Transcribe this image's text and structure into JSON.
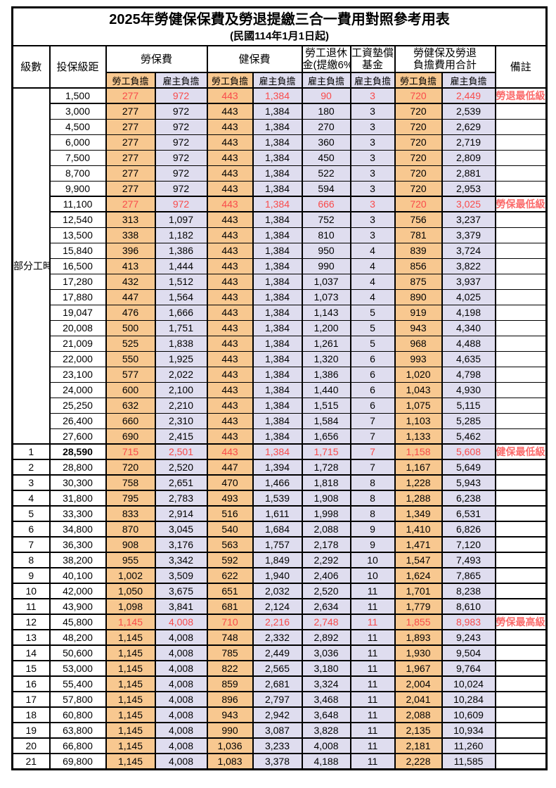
{
  "title": "2025年勞健保保費及勞退提繳三合一費用對照參考用表",
  "subtitle": "(民國114年1月1日起)",
  "colors": {
    "employee_bg": "#f8c890",
    "employer_bg": "#dfddef",
    "highlight_text": "#f94b4b",
    "border": "#000000"
  },
  "header": {
    "level": "級數",
    "bracket": "投保級距",
    "labor_fee": "勞保費",
    "health_fee": "健保費",
    "pension_line1": "勞工退休",
    "pension_line2": "金(提繳6%)",
    "wage_fund_line1": "工資墊償",
    "wage_fund_line2": "基金",
    "total_line1": "勞健保及勞退",
    "total_line2": "負擔費用合計",
    "remark": "備註",
    "employee": "勞工負擔",
    "employer": "雇主負擔"
  },
  "part_time_label": "部分工時",
  "rows": [
    {
      "level": "",
      "bracket": "1,500",
      "labor_emp": "277",
      "labor_er": "972",
      "health_emp": "443",
      "health_er": "1,384",
      "pension_er": "90",
      "wage_er": "3",
      "total_emp": "720",
      "total_er": "2,449",
      "remark": "勞退最低級距",
      "red": true
    },
    {
      "level": "",
      "bracket": "3,000",
      "labor_emp": "277",
      "labor_er": "972",
      "health_emp": "443",
      "health_er": "1,384",
      "pension_er": "180",
      "wage_er": "3",
      "total_emp": "720",
      "total_er": "2,539",
      "remark": ""
    },
    {
      "level": "",
      "bracket": "4,500",
      "labor_emp": "277",
      "labor_er": "972",
      "health_emp": "443",
      "health_er": "1,384",
      "pension_er": "270",
      "wage_er": "3",
      "total_emp": "720",
      "total_er": "2,629",
      "remark": ""
    },
    {
      "level": "",
      "bracket": "6,000",
      "labor_emp": "277",
      "labor_er": "972",
      "health_emp": "443",
      "health_er": "1,384",
      "pension_er": "360",
      "wage_er": "3",
      "total_emp": "720",
      "total_er": "2,719",
      "remark": ""
    },
    {
      "level": "",
      "bracket": "7,500",
      "labor_emp": "277",
      "labor_er": "972",
      "health_emp": "443",
      "health_er": "1,384",
      "pension_er": "450",
      "wage_er": "3",
      "total_emp": "720",
      "total_er": "2,809",
      "remark": ""
    },
    {
      "level": "",
      "bracket": "8,700",
      "labor_emp": "277",
      "labor_er": "972",
      "health_emp": "443",
      "health_er": "1,384",
      "pension_er": "522",
      "wage_er": "3",
      "total_emp": "720",
      "total_er": "2,881",
      "remark": ""
    },
    {
      "level": "",
      "bracket": "9,900",
      "labor_emp": "277",
      "labor_er": "972",
      "health_emp": "443",
      "health_er": "1,384",
      "pension_er": "594",
      "wage_er": "3",
      "total_emp": "720",
      "total_er": "2,953",
      "remark": ""
    },
    {
      "level": "",
      "bracket": "11,100",
      "labor_emp": "277",
      "labor_er": "972",
      "health_emp": "443",
      "health_er": "1,384",
      "pension_er": "666",
      "wage_er": "3",
      "total_emp": "720",
      "total_er": "3,025",
      "remark": "勞保最低級距",
      "red": true
    },
    {
      "level": "",
      "bracket": "12,540",
      "labor_emp": "313",
      "labor_er": "1,097",
      "health_emp": "443",
      "health_er": "1,384",
      "pension_er": "752",
      "wage_er": "3",
      "total_emp": "756",
      "total_er": "3,237",
      "remark": ""
    },
    {
      "level": "",
      "bracket": "13,500",
      "labor_emp": "338",
      "labor_er": "1,182",
      "health_emp": "443",
      "health_er": "1,384",
      "pension_er": "810",
      "wage_er": "3",
      "total_emp": "781",
      "total_er": "3,379",
      "remark": ""
    },
    {
      "level": "",
      "bracket": "15,840",
      "labor_emp": "396",
      "labor_er": "1,386",
      "health_emp": "443",
      "health_er": "1,384",
      "pension_er": "950",
      "wage_er": "4",
      "total_emp": "839",
      "total_er": "3,724",
      "remark": ""
    },
    {
      "level": "",
      "bracket": "16,500",
      "labor_emp": "413",
      "labor_er": "1,444",
      "health_emp": "443",
      "health_er": "1,384",
      "pension_er": "990",
      "wage_er": "4",
      "total_emp": "856",
      "total_er": "3,822",
      "remark": ""
    },
    {
      "level": "",
      "bracket": "17,280",
      "labor_emp": "432",
      "labor_er": "1,512",
      "health_emp": "443",
      "health_er": "1,384",
      "pension_er": "1,037",
      "wage_er": "4",
      "total_emp": "875",
      "total_er": "3,937",
      "remark": ""
    },
    {
      "level": "",
      "bracket": "17,880",
      "labor_emp": "447",
      "labor_er": "1,564",
      "health_emp": "443",
      "health_er": "1,384",
      "pension_er": "1,073",
      "wage_er": "4",
      "total_emp": "890",
      "total_er": "4,025",
      "remark": ""
    },
    {
      "level": "",
      "bracket": "19,047",
      "labor_emp": "476",
      "labor_er": "1,666",
      "health_emp": "443",
      "health_er": "1,384",
      "pension_er": "1,143",
      "wage_er": "5",
      "total_emp": "919",
      "total_er": "4,198",
      "remark": ""
    },
    {
      "level": "",
      "bracket": "20,008",
      "labor_emp": "500",
      "labor_er": "1,751",
      "health_emp": "443",
      "health_er": "1,384",
      "pension_er": "1,200",
      "wage_er": "5",
      "total_emp": "943",
      "total_er": "4,340",
      "remark": ""
    },
    {
      "level": "",
      "bracket": "21,009",
      "labor_emp": "525",
      "labor_er": "1,838",
      "health_emp": "443",
      "health_er": "1,384",
      "pension_er": "1,261",
      "wage_er": "5",
      "total_emp": "968",
      "total_er": "4,488",
      "remark": ""
    },
    {
      "level": "",
      "bracket": "22,000",
      "labor_emp": "550",
      "labor_er": "1,925",
      "health_emp": "443",
      "health_er": "1,384",
      "pension_er": "1,320",
      "wage_er": "6",
      "total_emp": "993",
      "total_er": "4,635",
      "remark": ""
    },
    {
      "level": "",
      "bracket": "23,100",
      "labor_emp": "577",
      "labor_er": "2,022",
      "health_emp": "443",
      "health_er": "1,384",
      "pension_er": "1,386",
      "wage_er": "6",
      "total_emp": "1,020",
      "total_er": "4,798",
      "remark": ""
    },
    {
      "level": "",
      "bracket": "24,000",
      "labor_emp": "600",
      "labor_er": "2,100",
      "health_emp": "443",
      "health_er": "1,384",
      "pension_er": "1,440",
      "wage_er": "6",
      "total_emp": "1,043",
      "total_er": "4,930",
      "remark": ""
    },
    {
      "level": "",
      "bracket": "25,250",
      "labor_emp": "632",
      "labor_er": "2,210",
      "health_emp": "443",
      "health_er": "1,384",
      "pension_er": "1,515",
      "wage_er": "6",
      "total_emp": "1,075",
      "total_er": "5,115",
      "remark": ""
    },
    {
      "level": "",
      "bracket": "26,400",
      "labor_emp": "660",
      "labor_er": "2,310",
      "health_emp": "443",
      "health_er": "1,384",
      "pension_er": "1,584",
      "wage_er": "7",
      "total_emp": "1,103",
      "total_er": "5,285",
      "remark": ""
    },
    {
      "level": "",
      "bracket": "27,600",
      "labor_emp": "690",
      "labor_er": "2,415",
      "health_emp": "443",
      "health_er": "1,384",
      "pension_er": "1,656",
      "wage_er": "7",
      "total_emp": "1,133",
      "total_er": "5,462",
      "remark": ""
    },
    {
      "level": "1",
      "bracket": "28,590",
      "labor_emp": "715",
      "labor_er": "2,501",
      "health_emp": "443",
      "health_er": "1,384",
      "pension_er": "1,715",
      "wage_er": "7",
      "total_emp": "1,158",
      "total_er": "5,608",
      "remark": "健保最低級距",
      "red": true,
      "emph": true
    },
    {
      "level": "2",
      "bracket": "28,800",
      "labor_emp": "720",
      "labor_er": "2,520",
      "health_emp": "447",
      "health_er": "1,394",
      "pension_er": "1,728",
      "wage_er": "7",
      "total_emp": "1,167",
      "total_er": "5,649",
      "remark": ""
    },
    {
      "level": "3",
      "bracket": "30,300",
      "labor_emp": "758",
      "labor_er": "2,651",
      "health_emp": "470",
      "health_er": "1,466",
      "pension_er": "1,818",
      "wage_er": "8",
      "total_emp": "1,228",
      "total_er": "5,943",
      "remark": ""
    },
    {
      "level": "4",
      "bracket": "31,800",
      "labor_emp": "795",
      "labor_er": "2,783",
      "health_emp": "493",
      "health_er": "1,539",
      "pension_er": "1,908",
      "wage_er": "8",
      "total_emp": "1,288",
      "total_er": "6,238",
      "remark": ""
    },
    {
      "level": "5",
      "bracket": "33,300",
      "labor_emp": "833",
      "labor_er": "2,914",
      "health_emp": "516",
      "health_er": "1,611",
      "pension_er": "1,998",
      "wage_er": "8",
      "total_emp": "1,349",
      "total_er": "6,531",
      "remark": ""
    },
    {
      "level": "6",
      "bracket": "34,800",
      "labor_emp": "870",
      "labor_er": "3,045",
      "health_emp": "540",
      "health_er": "1,684",
      "pension_er": "2,088",
      "wage_er": "9",
      "total_emp": "1,410",
      "total_er": "6,826",
      "remark": ""
    },
    {
      "level": "7",
      "bracket": "36,300",
      "labor_emp": "908",
      "labor_er": "3,176",
      "health_emp": "563",
      "health_er": "1,757",
      "pension_er": "2,178",
      "wage_er": "9",
      "total_emp": "1,471",
      "total_er": "7,120",
      "remark": ""
    },
    {
      "level": "8",
      "bracket": "38,200",
      "labor_emp": "955",
      "labor_er": "3,342",
      "health_emp": "592",
      "health_er": "1,849",
      "pension_er": "2,292",
      "wage_er": "10",
      "total_emp": "1,547",
      "total_er": "7,493",
      "remark": ""
    },
    {
      "level": "9",
      "bracket": "40,100",
      "labor_emp": "1,002",
      "labor_er": "3,509",
      "health_emp": "622",
      "health_er": "1,940",
      "pension_er": "2,406",
      "wage_er": "10",
      "total_emp": "1,624",
      "total_er": "7,865",
      "remark": ""
    },
    {
      "level": "10",
      "bracket": "42,000",
      "labor_emp": "1,050",
      "labor_er": "3,675",
      "health_emp": "651",
      "health_er": "2,032",
      "pension_er": "2,520",
      "wage_er": "11",
      "total_emp": "1,701",
      "total_er": "8,238",
      "remark": ""
    },
    {
      "level": "11",
      "bracket": "43,900",
      "labor_emp": "1,098",
      "labor_er": "3,841",
      "health_emp": "681",
      "health_er": "2,124",
      "pension_er": "2,634",
      "wage_er": "11",
      "total_emp": "1,779",
      "total_er": "8,610",
      "remark": ""
    },
    {
      "level": "12",
      "bracket": "45,800",
      "labor_emp": "1,145",
      "labor_er": "4,008",
      "health_emp": "710",
      "health_er": "2,216",
      "pension_er": "2,748",
      "wage_er": "11",
      "total_emp": "1,855",
      "total_er": "8,983",
      "remark": "勞保最高級距",
      "red": true
    },
    {
      "level": "13",
      "bracket": "48,200",
      "labor_emp": "1,145",
      "labor_er": "4,008",
      "health_emp": "748",
      "health_er": "2,332",
      "pension_er": "2,892",
      "wage_er": "11",
      "total_emp": "1,893",
      "total_er": "9,243",
      "remark": ""
    },
    {
      "level": "14",
      "bracket": "50,600",
      "labor_emp": "1,145",
      "labor_er": "4,008",
      "health_emp": "785",
      "health_er": "2,449",
      "pension_er": "3,036",
      "wage_er": "11",
      "total_emp": "1,930",
      "total_er": "9,504",
      "remark": ""
    },
    {
      "level": "15",
      "bracket": "53,000",
      "labor_emp": "1,145",
      "labor_er": "4,008",
      "health_emp": "822",
      "health_er": "2,565",
      "pension_er": "3,180",
      "wage_er": "11",
      "total_emp": "1,967",
      "total_er": "9,764",
      "remark": ""
    },
    {
      "level": "16",
      "bracket": "55,400",
      "labor_emp": "1,145",
      "labor_er": "4,008",
      "health_emp": "859",
      "health_er": "2,681",
      "pension_er": "3,324",
      "wage_er": "11",
      "total_emp": "2,004",
      "total_er": "10,024",
      "remark": ""
    },
    {
      "level": "17",
      "bracket": "57,800",
      "labor_emp": "1,145",
      "labor_er": "4,008",
      "health_emp": "896",
      "health_er": "2,797",
      "pension_er": "3,468",
      "wage_er": "11",
      "total_emp": "2,041",
      "total_er": "10,284",
      "remark": ""
    },
    {
      "level": "18",
      "bracket": "60,800",
      "labor_emp": "1,145",
      "labor_er": "4,008",
      "health_emp": "943",
      "health_er": "2,942",
      "pension_er": "3,648",
      "wage_er": "11",
      "total_emp": "2,088",
      "total_er": "10,609",
      "remark": ""
    },
    {
      "level": "19",
      "bracket": "63,800",
      "labor_emp": "1,145",
      "labor_er": "4,008",
      "health_emp": "990",
      "health_er": "3,087",
      "pension_er": "3,828",
      "wage_er": "11",
      "total_emp": "2,135",
      "total_er": "10,934",
      "remark": ""
    },
    {
      "level": "20",
      "bracket": "66,800",
      "labor_emp": "1,145",
      "labor_er": "4,008",
      "health_emp": "1,036",
      "health_er": "3,233",
      "pension_er": "4,008",
      "wage_er": "11",
      "total_emp": "2,181",
      "total_er": "11,260",
      "remark": ""
    },
    {
      "level": "21",
      "bracket": "69,800",
      "labor_emp": "1,145",
      "labor_er": "4,008",
      "health_emp": "1,083",
      "health_er": "3,378",
      "pension_er": "4,188",
      "wage_er": "11",
      "total_emp": "2,228",
      "total_er": "11,585",
      "remark": ""
    }
  ]
}
